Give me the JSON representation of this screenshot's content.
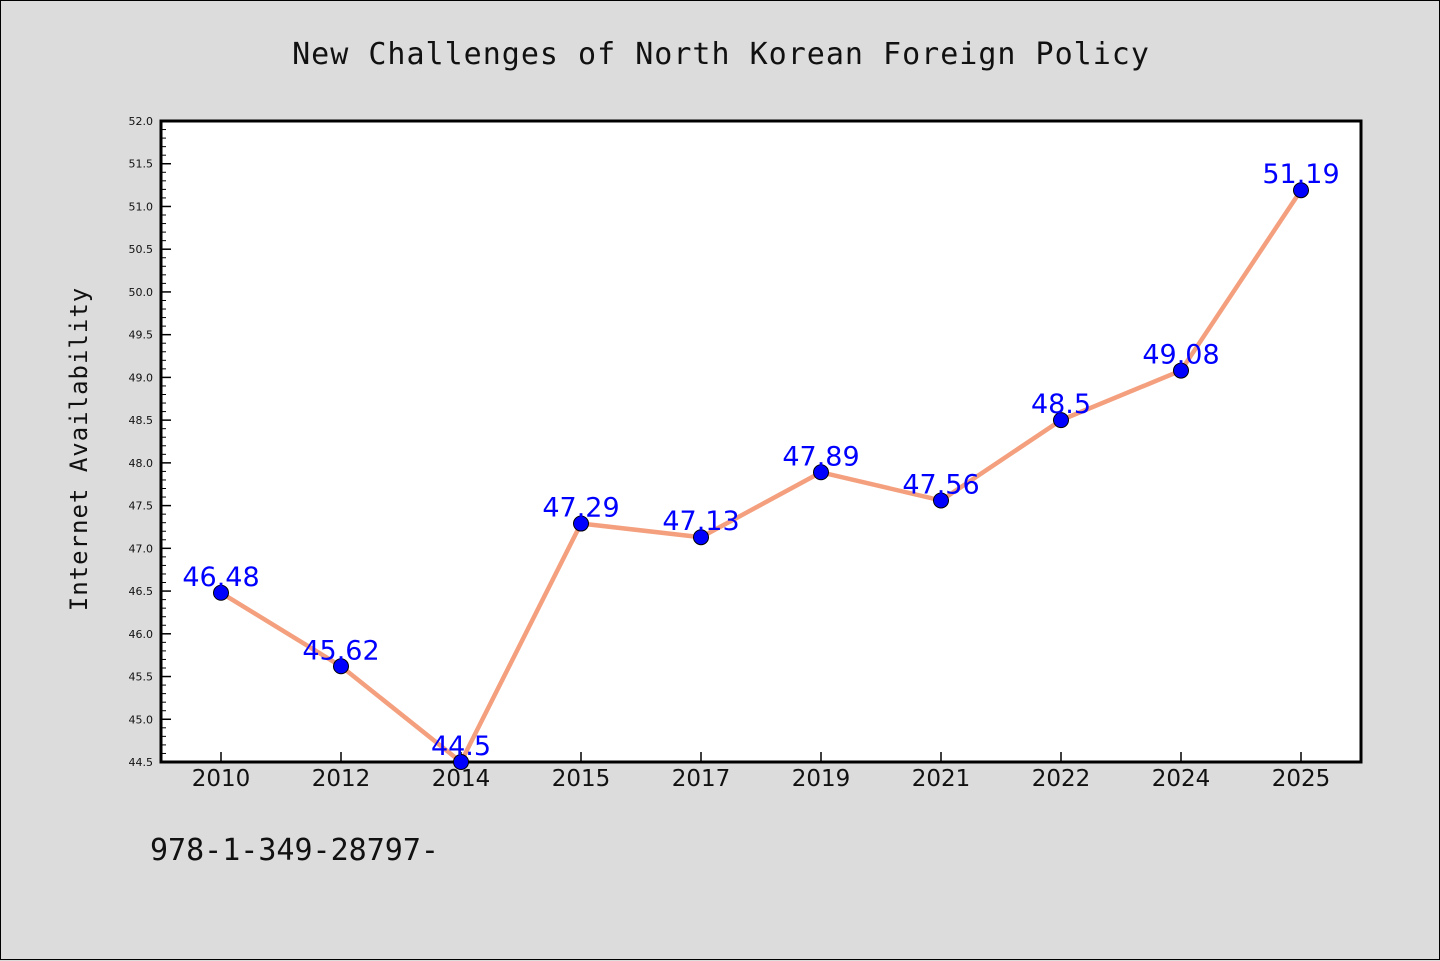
{
  "chart_data": {
    "type": "line",
    "title": "New Challenges of North Korean Foreign Policy",
    "xlabel": "",
    "ylabel": "Internet Availability",
    "categories": [
      "2010",
      "2012",
      "2014",
      "2015",
      "2017",
      "2019",
      "2021",
      "2022",
      "2024",
      "2025"
    ],
    "series": [
      {
        "values": [
          46.48,
          45.62,
          44.5,
          47.29,
          47.13,
          47.89,
          47.56,
          48.5,
          49.08,
          51.19
        ],
        "data_labels": [
          "46.48",
          "45.62",
          "44.5",
          "47.29",
          "47.13",
          "47.89",
          "47.56",
          "48.5",
          "49.08",
          "51.19"
        ]
      }
    ],
    "ylim": [
      44.5,
      52.0
    ],
    "yticks": [
      "44.5",
      "45.0",
      "45.5",
      "46.0",
      "46.5",
      "47.0",
      "47.5",
      "48.0",
      "48.5",
      "49.0",
      "49.5",
      "50.0",
      "50.5",
      "51.0",
      "51.5",
      "52.0"
    ],
    "grid": false,
    "line_color": "#f4a07e",
    "marker_color": "#0000ff",
    "label_color": "#0000ff"
  },
  "footer_note": "978-1-349-28797-"
}
